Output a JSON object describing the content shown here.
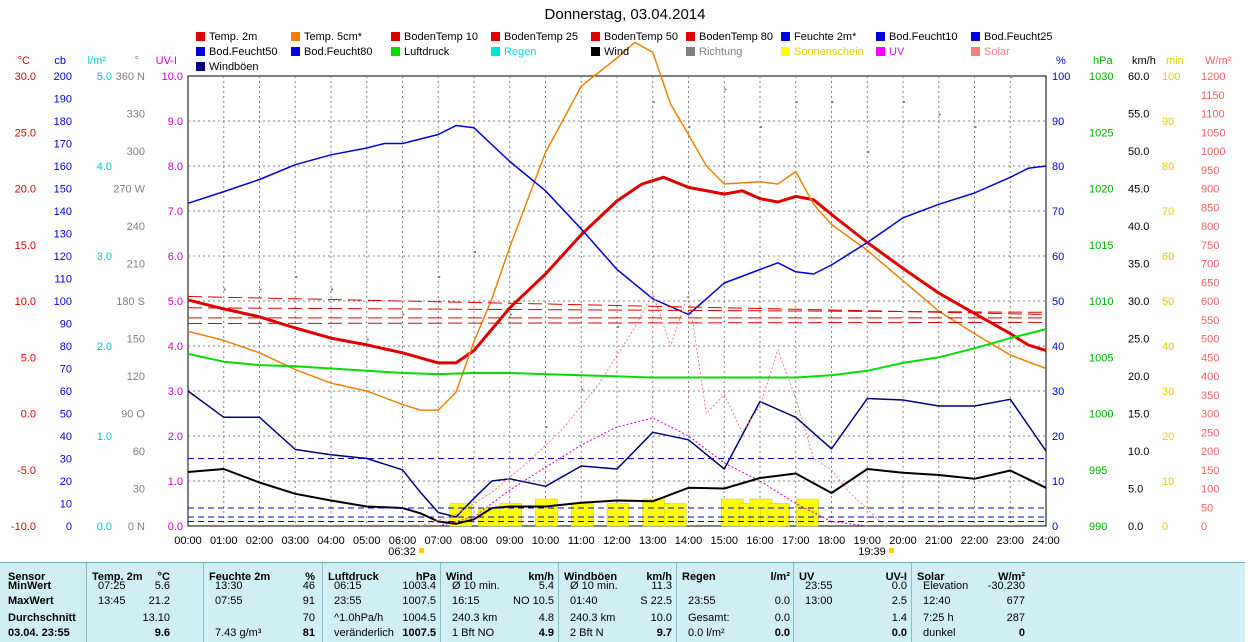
{
  "title": "Donnerstag, 03.04.2014",
  "legend": [
    {
      "label": "Temp. 2m",
      "color": "#e00000"
    },
    {
      "label": "Temp. 5cm*",
      "color": "#f08000"
    },
    {
      "label": "BodenTemp 10",
      "color": "#e00000"
    },
    {
      "label": "BodenTemp 25",
      "color": "#e00000"
    },
    {
      "label": "BodenTemp 50",
      "color": "#e00000"
    },
    {
      "label": "BodenTemp 80",
      "color": "#e00000"
    },
    {
      "label": "Feuchte 2m*",
      "color": "#0000e0"
    },
    {
      "label": "Bod.Feucht10",
      "color": "#0000e0"
    },
    {
      "label": "Bod.Feucht25",
      "color": "#0000e0"
    },
    {
      "label": "Bod.Feucht50",
      "color": "#0000e0"
    },
    {
      "label": "Bod.Feucht80",
      "color": "#0000e0"
    },
    {
      "label": "Luftdruck",
      "color": "#00e000"
    },
    {
      "label": "Regen",
      "color": "#00e0e0"
    },
    {
      "label": "Wind",
      "color": "#000000"
    },
    {
      "label": "Richtung",
      "color": "#808080"
    },
    {
      "label": "Sonnenschein",
      "color": "#ffff00"
    },
    {
      "label": "UV",
      "color": "#ff00ff"
    },
    {
      "label": "Solar",
      "color": "#f08080"
    },
    {
      "label": "Windböen",
      "color": "#000080"
    }
  ],
  "chart_data": {
    "type": "line",
    "title": "Donnerstag, 03.04.2014",
    "x_labels": [
      "00:00",
      "01:00",
      "02:00",
      "03:00",
      "04:00",
      "05:00",
      "06:00",
      "07:00",
      "08:00",
      "09:00",
      "10:00",
      "11:00",
      "12:00",
      "13:00",
      "14:00",
      "15:00",
      "16:00",
      "17:00",
      "18:00",
      "19:00",
      "20:00",
      "21:00",
      "22:00",
      "23:00",
      "24:00"
    ],
    "x_range": [
      0,
      24
    ],
    "sunrise": "06:32",
    "sunset": "19:39",
    "axes": {
      "temp_c": {
        "unit": "°C",
        "color": "#e00000",
        "range": [
          -10,
          30
        ],
        "ticks": [
          "30.0",
          "25.0",
          "20.0",
          "15.0",
          "10.0",
          "5.0",
          "0.0",
          "-5.0",
          "-10.0"
        ]
      },
      "cb": {
        "unit": "cb",
        "color": "#0000e0",
        "range": [
          0,
          200
        ],
        "ticks": [
          "200",
          "190",
          "180",
          "170",
          "160",
          "150",
          "140",
          "130",
          "120",
          "110",
          "100",
          "90",
          "80",
          "70",
          "60",
          "50",
          "40",
          "30",
          "20",
          "10",
          "0"
        ]
      },
      "rain": {
        "unit": "l/m²",
        "color": "#00c8c8",
        "ticks": [
          "5.0",
          "4.0",
          "3.0",
          "2.0",
          "1.0",
          "0.0"
        ]
      },
      "direction": {
        "unit": "°",
        "color": "#808080",
        "ticks": [
          "360 N",
          "330",
          "300",
          "270 W",
          "240",
          "210",
          "180 S",
          "150",
          "120",
          "90 O",
          "60",
          "30",
          "0 N"
        ]
      },
      "uv": {
        "unit": "UV-I",
        "color": "#d000d0",
        "range": [
          0,
          10
        ],
        "ticks": [
          "10.0",
          "9.0",
          "8.0",
          "7.0",
          "6.0",
          "5.0",
          "4.0",
          "3.0",
          "2.0",
          "1.0",
          "0.0"
        ]
      },
      "humidity": {
        "unit": "%",
        "color": "#0000e0",
        "range": [
          0,
          100
        ],
        "ticks": [
          "100",
          "90",
          "80",
          "70",
          "60",
          "50",
          "40",
          "30",
          "20",
          "10",
          "0"
        ]
      },
      "pressure": {
        "unit": "hPa",
        "color": "#00b000",
        "range": [
          990,
          1030
        ],
        "ticks": [
          "1030",
          "1025",
          "1020",
          "1015",
          "1010",
          "1005",
          "1000",
          "995",
          "990"
        ]
      },
      "wind": {
        "unit": "km/h",
        "color": "#000000",
        "range": [
          0,
          60
        ],
        "ticks": [
          "60.0",
          "55.0",
          "50.0",
          "45.0",
          "40.0",
          "35.0",
          "30.0",
          "25.0",
          "20.0",
          "15.0",
          "10.0",
          "5.0",
          "0.0"
        ]
      },
      "sun": {
        "unit": "min",
        "color": "#e0d000",
        "ticks": [
          "100",
          "90",
          "80",
          "70",
          "60",
          "50",
          "40",
          "30",
          "20",
          "10",
          "0"
        ]
      },
      "solar": {
        "unit": "W/m²",
        "color": "#f06060",
        "range": [
          0,
          1200
        ],
        "ticks": [
          "1200",
          "1150",
          "1100",
          "1050",
          "1000",
          "950",
          "900",
          "850",
          "800",
          "750",
          "700",
          "650",
          "600",
          "550",
          "500",
          "450",
          "400",
          "350",
          "300",
          "250",
          "200",
          "150",
          "100",
          "50",
          "0"
        ]
      }
    },
    "series": [
      {
        "name": "Temp. 2m",
        "axis": "temp_c",
        "color": "#e00000",
        "x": [
          0,
          1,
          2,
          3,
          4,
          5,
          6,
          7,
          7.5,
          8,
          9,
          10,
          11,
          12,
          12.7,
          13.3,
          14,
          15,
          15.5,
          16,
          16.5,
          17,
          17.5,
          18,
          19,
          20,
          21,
          22,
          23,
          23.5,
          24
        ],
        "y": [
          10.1,
          9.3,
          8.6,
          7.6,
          6.7,
          6.1,
          5.4,
          4.5,
          4.5,
          5.6,
          9.4,
          12.4,
          15.9,
          18.9,
          20.4,
          21.0,
          20.1,
          19.5,
          19.8,
          19.1,
          18.8,
          19.3,
          19.0,
          17.7,
          15.2,
          12.9,
          10.7,
          8.9,
          7.1,
          6.1,
          5.6
        ]
      },
      {
        "name": "Temp. 5cm*",
        "axis": "temp_c",
        "color": "#f08000",
        "x": [
          0,
          1,
          2,
          3,
          4,
          5,
          6,
          6.5,
          7,
          7.5,
          8,
          8.5,
          9,
          10,
          11,
          12,
          12.5,
          13,
          13.5,
          14,
          14.5,
          15,
          16,
          16.5,
          17,
          17.5,
          18,
          19,
          20,
          21,
          22,
          23,
          24
        ],
        "y": [
          7.3,
          6.5,
          5.4,
          3.9,
          2.7,
          2.0,
          0.8,
          0.3,
          0.3,
          1.9,
          6.4,
          10.2,
          14.8,
          23.2,
          29.1,
          31.6,
          33.0,
          32.1,
          27.5,
          24.8,
          22.0,
          20.4,
          20.6,
          20.4,
          21.5,
          18.6,
          16.8,
          14.5,
          11.8,
          9.1,
          7.1,
          5.2,
          4.0
        ]
      },
      {
        "name": "Feuchte 2m*",
        "axis": "humidity",
        "color": "#0000e0",
        "x": [
          0,
          1,
          2,
          3,
          4,
          5,
          5.5,
          6,
          7,
          7.5,
          8,
          9,
          10,
          11,
          12,
          13,
          14,
          14.5,
          15,
          16,
          16.5,
          17,
          17.5,
          18,
          19,
          20,
          21,
          22,
          23,
          23.5,
          24
        ],
        "y": [
          71.7,
          74.3,
          77.0,
          80.3,
          82.5,
          84.0,
          85.0,
          85.0,
          87.0,
          89.0,
          88.5,
          81.0,
          74.5,
          66.0,
          57.0,
          50.5,
          47.0,
          50.5,
          54.0,
          57.0,
          58.5,
          56.5,
          56.0,
          58.0,
          63.0,
          68.5,
          71.5,
          74.0,
          77.5,
          79.5,
          80.0
        ]
      },
      {
        "name": "Luftdruck",
        "axis": "pressure",
        "color": "#00e000",
        "x": [
          0,
          1,
          2,
          3,
          4,
          5,
          6,
          7,
          8,
          9,
          10,
          11,
          12,
          13,
          14,
          15,
          16,
          17,
          18,
          19,
          20,
          21,
          22,
          23,
          24
        ],
        "y": [
          1005.3,
          1004.6,
          1004.3,
          1004.2,
          1004.0,
          1003.8,
          1003.6,
          1003.5,
          1003.6,
          1003.6,
          1003.5,
          1003.4,
          1003.3,
          1003.2,
          1003.2,
          1003.2,
          1003.2,
          1003.2,
          1003.4,
          1003.8,
          1004.5,
          1005.0,
          1005.8,
          1006.7,
          1007.5
        ]
      },
      {
        "name": "Wind",
        "axis": "wind",
        "color": "#000000",
        "x": [
          0,
          1,
          2,
          3,
          4,
          5,
          6,
          6.5,
          7,
          7.5,
          8,
          8.5,
          9,
          10,
          11,
          12,
          13,
          14,
          15,
          16,
          17,
          18,
          19,
          20,
          21,
          22,
          23,
          24
        ],
        "y": [
          7.2,
          7.6,
          5.8,
          4.3,
          3.4,
          2.6,
          2.4,
          1.7,
          0.6,
          0.3,
          0.9,
          2.4,
          2.6,
          2.6,
          3.1,
          3.4,
          3.3,
          5.1,
          5.0,
          6.4,
          7.0,
          4.4,
          7.6,
          7.1,
          6.8,
          6.3,
          7.4,
          5.1
        ]
      },
      {
        "name": "Windböen",
        "axis": "wind",
        "color": "#000080",
        "x": [
          0,
          1,
          2,
          3,
          4,
          5,
          6,
          6.5,
          7,
          7.5,
          8,
          8.5,
          9,
          10,
          11,
          12,
          13,
          14,
          15,
          16,
          17,
          18,
          19,
          20,
          21,
          22,
          23,
          24
        ],
        "y": [
          18.0,
          14.5,
          14.5,
          10.2,
          9.5,
          9.0,
          7.5,
          4.5,
          1.8,
          1.2,
          3.7,
          6.0,
          6.3,
          5.3,
          8.0,
          7.6,
          12.5,
          11.5,
          7.6,
          16.6,
          14.5,
          10.3,
          17.0,
          16.8,
          16.0,
          16.0,
          16.9,
          10.0
        ]
      },
      {
        "name": "BodenTemp 10",
        "axis": "temp_c",
        "color": "#e00000",
        "x": [
          0,
          24
        ],
        "y": [
          10.4,
          8.8
        ]
      },
      {
        "name": "BodenTemp 25",
        "axis": "temp_c",
        "color": "#e00000",
        "x": [
          0,
          24
        ],
        "y": [
          9.4,
          9.0
        ]
      },
      {
        "name": "BodenTemp 50",
        "axis": "temp_c",
        "color": "#e00000",
        "x": [
          0,
          24
        ],
        "y": [
          8.5,
          8.5
        ]
      },
      {
        "name": "BodenTemp 80",
        "axis": "temp_c",
        "color": "#e00000",
        "x": [
          0,
          24
        ],
        "y": [
          8.0,
          8.1
        ]
      },
      {
        "name": "Bod.Feucht10",
        "axis": "cb",
        "color": "#0000e0",
        "x": [
          0,
          24
        ],
        "y": [
          30,
          30
        ]
      },
      {
        "name": "Bod.Feucht25",
        "axis": "cb",
        "color": "#0000e0",
        "x": [
          0,
          24
        ],
        "y": [
          8,
          8
        ]
      },
      {
        "name": "Bod.Feucht50",
        "axis": "cb",
        "color": "#0000e0",
        "x": [
          0,
          24
        ],
        "y": [
          4,
          4
        ]
      },
      {
        "name": "Bod.Feucht80",
        "axis": "cb",
        "color": "#0000e0",
        "x": [
          0,
          24
        ],
        "y": [
          2,
          2
        ]
      },
      {
        "name": "UV",
        "axis": "uv",
        "color": "#d000d0",
        "x": [
          7,
          8,
          9,
          10,
          11,
          12,
          13,
          14,
          15,
          16,
          17,
          18,
          19
        ],
        "y": [
          0,
          0.2,
          0.8,
          1.3,
          1.8,
          2.2,
          2.4,
          2.0,
          1.4,
          1.0,
          0.5,
          0.1,
          0
        ]
      },
      {
        "name": "Solar",
        "axis": "solar",
        "color": "#f08080",
        "x": [
          6.5,
          7.5,
          8.5,
          9.5,
          10.5,
          11.5,
          12.5,
          13,
          13.5,
          14,
          14.5,
          15,
          15.5,
          16,
          16.5,
          17,
          17.5,
          18,
          18.5,
          19.5
        ],
        "y": [
          0,
          30,
          90,
          170,
          260,
          380,
          530,
          620,
          480,
          620,
          300,
          350,
          250,
          320,
          470,
          340,
          180,
          150,
          90,
          0
        ]
      },
      {
        "name": "Sonnenschein",
        "axis": "sun",
        "color": "#ffff00",
        "x": [
          7.6,
          8.4,
          9.0,
          10.0,
          11.0,
          12.0,
          13.0,
          13.6,
          15.2,
          15.7,
          16.0,
          16.3,
          16.5,
          17.3
        ],
        "y": [
          5,
          4,
          5,
          6,
          5,
          5,
          6,
          5,
          6,
          5,
          6,
          4,
          5,
          6
        ]
      },
      {
        "name": "Richtung",
        "axis": "direction",
        "color": "#808080",
        "x": [
          1,
          2,
          3,
          4,
          5,
          6,
          7,
          8,
          9,
          10,
          11,
          12,
          13,
          14,
          15,
          16,
          17,
          18,
          19,
          20,
          21,
          22,
          23
        ],
        "y": [
          190,
          190,
          200,
          190,
          150,
          170,
          200,
          220,
          170,
          80,
          110,
          160,
          340,
          320,
          350,
          320,
          340,
          340,
          300,
          340,
          330,
          320,
          360
        ]
      }
    ]
  },
  "stats": {
    "sensor": {
      "header": "Sensor",
      "rows": [
        "MinWert",
        "MaxWert",
        "Durchschnitt",
        "03.04. 23:55"
      ]
    },
    "temp": {
      "header": "Temp. 2m",
      "unit": "°C",
      "rows": [
        [
          "07:25",
          "5.6"
        ],
        [
          "13:45",
          "21.2"
        ],
        [
          "",
          "13.10"
        ],
        [
          "",
          "9.6"
        ]
      ]
    },
    "feuchte": {
      "header": "Feuchte 2m",
      "unit": "%",
      "rows": [
        [
          "13:30",
          "46"
        ],
        [
          "07:55",
          "91"
        ],
        [
          "",
          "70"
        ],
        [
          "7.43 g/m³",
          "81"
        ]
      ]
    },
    "luftdruck": {
      "header": "Luftdruck",
      "unit": "hPa",
      "rows": [
        [
          "06:15",
          "1003.4"
        ],
        [
          "23:55",
          "1007.5"
        ],
        [
          "^1.0hPa/h",
          "1004.5"
        ],
        [
          "veränderlich",
          "1007.5"
        ]
      ]
    },
    "wind": {
      "header": "Wind",
      "unit": "km/h",
      "rows": [
        [
          "Ø 10 min.",
          "5.4"
        ],
        [
          "16:15",
          "NO 10.5"
        ],
        [
          "240.3 km",
          "4.8"
        ],
        [
          "1 Bft NO",
          "4.9"
        ]
      ]
    },
    "boeen": {
      "header": "Windböen",
      "unit": "km/h",
      "rows": [
        [
          "Ø 10 min.",
          "11.3"
        ],
        [
          "01:40",
          "S 22.5"
        ],
        [
          "240.3 km",
          "10.0"
        ],
        [
          "2 Bft N",
          "9.7"
        ]
      ]
    },
    "regen": {
      "header": "Regen",
      "unit": "l/m²",
      "rows": [
        [
          "",
          ""
        ],
        [
          "23:55",
          "0.0"
        ],
        [
          "Gesamt:",
          "0.0"
        ],
        [
          "0.0 l/m²",
          "0.0"
        ]
      ]
    },
    "uv": {
      "header": "UV",
      "unit": "UV-I",
      "rows": [
        [
          "23:55",
          "0.0"
        ],
        [
          "13:00",
          "2.5"
        ],
        [
          "",
          "1.4"
        ],
        [
          "",
          "0.0"
        ]
      ]
    },
    "solar": {
      "header": "Solar",
      "unit": "W/m²",
      "rows": [
        [
          "Elevation",
          "-30.230"
        ],
        [
          "12:40",
          "677"
        ],
        [
          "7:25 h",
          "287"
        ],
        [
          "dunkel",
          "0"
        ]
      ]
    }
  }
}
